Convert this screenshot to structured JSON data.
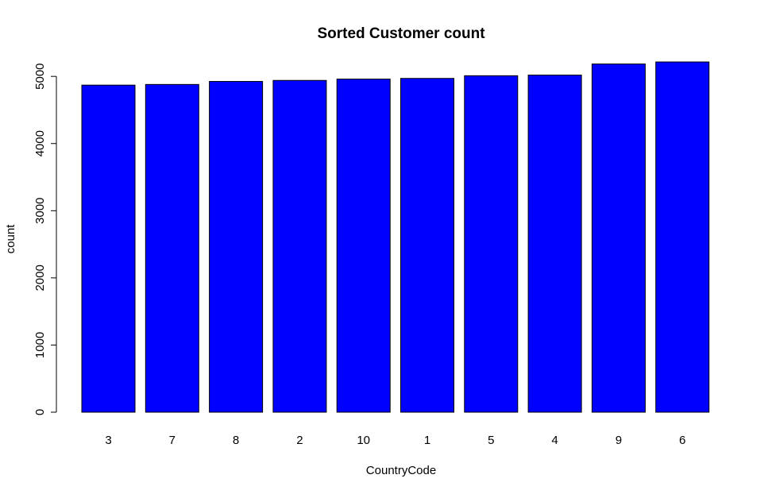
{
  "chart_data": {
    "type": "bar",
    "title": "Sorted Customer count",
    "xlabel": "CountryCode",
    "ylabel": "count",
    "categories": [
      "3",
      "7",
      "8",
      "2",
      "10",
      "1",
      "5",
      "4",
      "9",
      "6"
    ],
    "values": [
      4870,
      4880,
      4925,
      4940,
      4960,
      4970,
      5010,
      5020,
      5185,
      5215
    ],
    "ylim": [
      0,
      5215
    ],
    "yticks": [
      0,
      1000,
      2000,
      3000,
      4000,
      5000
    ],
    "bar_color": "#0000ff",
    "grid": false,
    "legend": "none"
  }
}
